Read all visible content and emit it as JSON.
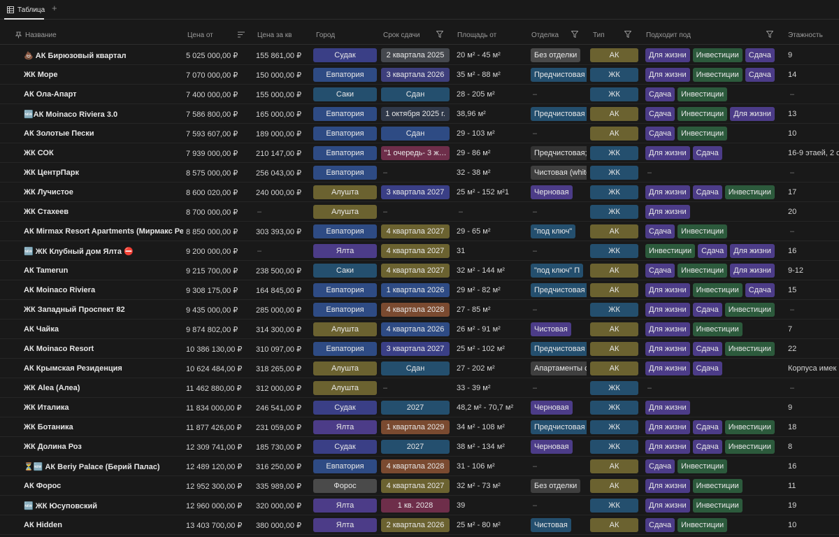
{
  "tabs": [
    {
      "label": "Таблица",
      "icon": "table-icon"
    }
  ],
  "add_tab_label": "+",
  "columns": [
    "Название",
    "Цена от",
    "Цена за кв",
    "Город",
    "Срок сдачи",
    "Площадь от",
    "Отделка",
    "Тип",
    "Подходит под",
    "Этажность"
  ],
  "tag_colors": {
    "city": {
      "Судак": "#3a3f86",
      "Евпатория": "#2e4b84",
      "Саки": "#244f6e",
      "Алушта": "#6b6230",
      "Ялта": "#4c3c88",
      "Форос": "#4a4a4a"
    },
    "type": {
      "АК": "#6b6230",
      "ЖК": "#244f6e"
    },
    "fit": {
      "Для жизни": "#4c3c88",
      "Инвестиции": "#2c5a3c",
      "Сдача": "#4c3c88"
    },
    "deadline_default": "#2e3a6e"
  },
  "rows": [
    {
      "name": "💩 АК Бирюзовый квартал",
      "price": "5 025 000,00 ₽",
      "price_m2": "155 861,00 ₽",
      "city": "Судак",
      "deadline": "2 квартала 2025",
      "deadline_color": "#45484e",
      "area": "20 м² - 45 м²",
      "finish": "Без отделки",
      "finish_color": "#4a4a4a",
      "type": "АК",
      "fits": [
        "Для жизни",
        "Инвестиции",
        "Сдача"
      ],
      "floors": "9"
    },
    {
      "name": "ЖК Море",
      "price": "7 070 000,00 ₽",
      "price_m2": "150 000,00 ₽",
      "city": "Евпатория",
      "deadline": "3 квартала 2026",
      "deadline_color": "#3e3f7c",
      "area": "35 м² - 88 м²",
      "finish": "Предчистовая",
      "finish_color": "#244f6e",
      "type": "ЖК",
      "fits": [
        "Для жизни",
        "Инвестиции",
        "Сдача"
      ],
      "floors": "14"
    },
    {
      "name": "АК Ола-Апарт",
      "price": "7 400 000,00 ₽",
      "price_m2": "155 000,00 ₽",
      "city": "Саки",
      "deadline": "Сдан",
      "deadline_color": "#244f6e",
      "area": "28 - 205 м²",
      "finish": "",
      "finish_color": "",
      "type": "ЖК",
      "fits": [
        "Сдача",
        "Инвестиции"
      ],
      "floors": ""
    },
    {
      "name": "🆕АК Moinaco Riviera 3.0",
      "price": "7 586 800,00 ₽",
      "price_m2": "165 000,00 ₽",
      "city": "Евпатория",
      "deadline": "1 октября 2025 г.",
      "deadline_color": "#30394a",
      "area": "38,96 м²",
      "finish": "Предчистовая",
      "finish_color": "#244f6e",
      "type": "АК",
      "fits": [
        "Сдача",
        "Инвестиции",
        "Для жизни"
      ],
      "floors": "13"
    },
    {
      "name": "АК Золотые Пески",
      "price": "7 593 607,00 ₽",
      "price_m2": "189 000,00 ₽",
      "city": "Евпатория",
      "deadline": "Сдан",
      "deadline_color": "#2e4b84",
      "area": "29 - 103 м²",
      "finish": "",
      "finish_color": "",
      "type": "АК",
      "fits": [
        "Сдача",
        "Инвестиции"
      ],
      "floors": "10"
    },
    {
      "name": "ЖК СОК",
      "price": "7 939 000,00 ₽",
      "price_m2": "210 147,00 ₽",
      "city": "Евпатория",
      "deadline": "\"1 очередь- 3 ж…",
      "deadline_color": "#6e2e4a",
      "area": "29 - 86 м²",
      "finish": "Предчистовая;",
      "finish_color": "#333333",
      "type": "ЖК",
      "fits": [
        "Для жизни",
        "Сдача"
      ],
      "floors": "16-9 этаей, 2 с"
    },
    {
      "name": "ЖК ЦентрПарк",
      "price": "8 575 000,00 ₽",
      "price_m2": "256 043,00 ₽",
      "city": "Евпатория",
      "deadline": "",
      "deadline_color": "",
      "area": "32 - 38 м²",
      "finish": "Чистовая (white",
      "finish_color": "#3f3f3f",
      "type": "ЖК",
      "fits": [],
      "floors": ""
    },
    {
      "name": "ЖК Лучистое",
      "price": "8 600 020,00 ₽",
      "price_m2": "240 000,00 ₽",
      "city": "Алушта",
      "deadline": "3 квартала 2027",
      "deadline_color": "#3a3f86",
      "area": "25 м² - 152 м²1",
      "finish": "Черновая",
      "finish_color": "#4c3c88",
      "type": "ЖК",
      "fits": [
        "Для жизни",
        "Сдача",
        "Инвестиции"
      ],
      "floors": "17"
    },
    {
      "name": "ЖК Стахеев",
      "price": "8 700 000,00 ₽",
      "price_m2": "",
      "city": "Алушта",
      "deadline": "",
      "deadline_color": "",
      "area": "",
      "finish": "",
      "finish_color": "",
      "type": "ЖК",
      "fits": [
        "Для жизни"
      ],
      "floors": "20"
    },
    {
      "name": "АК Mirmax Resort Apartments (Мирмакс Резорт",
      "price": "8 850 000,00 ₽",
      "price_m2": "303 393,00 ₽",
      "city": "Евпатория",
      "deadline": "4 квартала 2027",
      "deadline_color": "#6b6230",
      "area": "29 - 65 м²",
      "finish": "\"под ключ\"",
      "finish_color": "#244f6e",
      "type": "АК",
      "fits": [
        "Сдача",
        "Инвестиции"
      ],
      "floors": ""
    },
    {
      "name": "🆕 ЖК Клубный дом Ялта ⛔",
      "price": "9 200 000,00 ₽",
      "price_m2": "",
      "city": "Ялта",
      "deadline": "4 квартала 2027",
      "deadline_color": "#6b6230",
      "area": "31",
      "finish": "",
      "finish_color": "",
      "type": "ЖК",
      "fits": [
        "Инвестиции",
        "Сдача",
        "Для жизни"
      ],
      "floors": "16"
    },
    {
      "name": "АК Tamerun",
      "price": "9 215 700,00 ₽",
      "price_m2": "238 500,00 ₽",
      "city": "Саки",
      "deadline": "4 квартала 2027",
      "deadline_color": "#6b6230",
      "area": "32 м² - 144 м²",
      "finish": "\"под ключ\"   П",
      "finish_color": "#244f6e",
      "type": "АК",
      "fits": [
        "Сдача",
        "Инвестиции",
        "Для жизни"
      ],
      "floors": "9-12"
    },
    {
      "name": "АК Moinaco Riviera",
      "price": "9 308 175,00 ₽",
      "price_m2": "164 845,00 ₽",
      "city": "Евпатория",
      "deadline": "1 квартала 2026",
      "deadline_color": "#2e4b84",
      "area": "29 м² - 82 м²",
      "finish": "Предчистовая",
      "finish_color": "#244f6e",
      "type": "АК",
      "fits": [
        "Для жизни",
        "Инвестиции",
        "Сдача"
      ],
      "floors": "15"
    },
    {
      "name": "ЖК Западный Проспект 82",
      "price": "9 435 000,00 ₽",
      "price_m2": "285 000,00 ₽",
      "city": "Евпатория",
      "deadline": "4 квартала 2028",
      "deadline_color": "#7a4a30",
      "area": "27 - 85 м²",
      "finish": "",
      "finish_color": "",
      "type": "ЖК",
      "fits": [
        "Для жизни",
        "Сдача",
        "Инвестиции"
      ],
      "floors": ""
    },
    {
      "name": "АК Чайка",
      "price": "9 874 802,00 ₽",
      "price_m2": "314 300,00 ₽",
      "city": "Алушта",
      "deadline": "4 квартала 2026",
      "deadline_color": "#2e4b84",
      "area": "26 м² - 91 м²",
      "finish": "Чистовая",
      "finish_color": "#4c3c88",
      "type": "АК",
      "fits": [
        "Для жизни",
        "Инвестиции"
      ],
      "floors": "7"
    },
    {
      "name": "АК Moinaco Resort",
      "price": "10 386 130,00 ₽",
      "price_m2": "310 097,00 ₽",
      "city": "Евпатория",
      "deadline": "3 квартала 2027",
      "deadline_color": "#3a3f86",
      "area": "25 м² - 102 м²",
      "finish": "Предчистовая",
      "finish_color": "#244f6e",
      "type": "АК",
      "fits": [
        "Для жизни",
        "Сдача",
        "Инвестиции"
      ],
      "floors": "22"
    },
    {
      "name": "АК Крымская Резиденция",
      "price": "10 624 484,00 ₽",
      "price_m2": "318 265,00 ₽",
      "city": "Алушта",
      "deadline": "Сдан",
      "deadline_color": "#244f6e",
      "area": "27 - 202 м²",
      "finish": "Апартаменты с",
      "finish_color": "#3f3f3f",
      "type": "АК",
      "fits": [
        "Для жизни",
        "Сдача"
      ],
      "floors": "Корпуса имек"
    },
    {
      "name": "ЖК Alea (Алеа)",
      "price": "11 462 880,00 ₽",
      "price_m2": "312 000,00 ₽",
      "city": "Алушта",
      "deadline": "",
      "deadline_color": "",
      "area": "33 - 39 м²",
      "finish": "",
      "finish_color": "",
      "type": "ЖК",
      "fits": [],
      "floors": ""
    },
    {
      "name": "ЖК Италика",
      "price": "11 834 000,00 ₽",
      "price_m2": "246 541,00 ₽",
      "city": "Судак",
      "deadline": "2027",
      "deadline_color": "#244f6e",
      "area": "48,2 м² - 70,7 м²",
      "finish": "Черновая",
      "finish_color": "#4c3c88",
      "type": "ЖК",
      "fits": [
        "Для жизни"
      ],
      "floors": "9"
    },
    {
      "name": "ЖК Ботаника",
      "price": "11 877 426,00 ₽",
      "price_m2": "231 059,00 ₽",
      "city": "Ялта",
      "deadline": "1 квартала 2029",
      "deadline_color": "#7a4a30",
      "area": "34 м² - 108 м²",
      "finish": "Предчистовая",
      "finish_color": "#244f6e",
      "type": "ЖК",
      "fits": [
        "Для жизни",
        "Сдача",
        "Инвестиции"
      ],
      "floors": "18"
    },
    {
      "name": "ЖК Долина Роз",
      "price": "12 309 741,00 ₽",
      "price_m2": "185 730,00 ₽",
      "city": "Судак",
      "deadline": "2027",
      "deadline_color": "#244f6e",
      "area": "38 м² - 134 м²",
      "finish": "Черновая",
      "finish_color": "#4c3c88",
      "type": "ЖК",
      "fits": [
        "Для жизни",
        "Сдача",
        "Инвестиции"
      ],
      "floors": "8"
    },
    {
      "name": "⏳🆕 АК Beriy Palace (Берий Палас)",
      "price": "12 489 120,00 ₽",
      "price_m2": "316 250,00 ₽",
      "city": "Евпатория",
      "deadline": "4 квартала 2028",
      "deadline_color": "#7a4a30",
      "area": "31 - 106 м²",
      "finish": "",
      "finish_color": "",
      "type": "АК",
      "fits": [
        "Сдача",
        "Инвестиции"
      ],
      "floors": "16"
    },
    {
      "name": "АК Форос",
      "price": "12 952 300,00 ₽",
      "price_m2": "335 989,00 ₽",
      "city": "Форос",
      "deadline": "4 квартала 2027",
      "deadline_color": "#6b6230",
      "area": "32 м² - 73 м²",
      "finish": "Без отделки",
      "finish_color": "#3f3f3f",
      "type": "АК",
      "fits": [
        "Для жизни",
        "Инвестиции"
      ],
      "floors": "11"
    },
    {
      "name": "🆕 ЖК Юсуповский",
      "price": "12 960 000,00 ₽",
      "price_m2": "320 000,00 ₽",
      "city": "Ялта",
      "deadline": "1 кв. 2028",
      "deadline_color": "#6e2e4a",
      "area": "39",
      "finish": "",
      "finish_color": "",
      "type": "ЖК",
      "fits": [
        "Для жизни",
        "Инвестиции"
      ],
      "floors": "19"
    },
    {
      "name": "АК Hidden",
      "price": "13 403 700,00 ₽",
      "price_m2": "380 000,00 ₽",
      "city": "Ялта",
      "deadline": "2 квартала 2026",
      "deadline_color": "#6b6230",
      "area": "25 м² - 80 м²",
      "finish": "Чистовая",
      "finish_color": "#244f6e",
      "type": "АК",
      "fits": [
        "Сдача",
        "Инвестиции"
      ],
      "floors": "10"
    }
  ]
}
